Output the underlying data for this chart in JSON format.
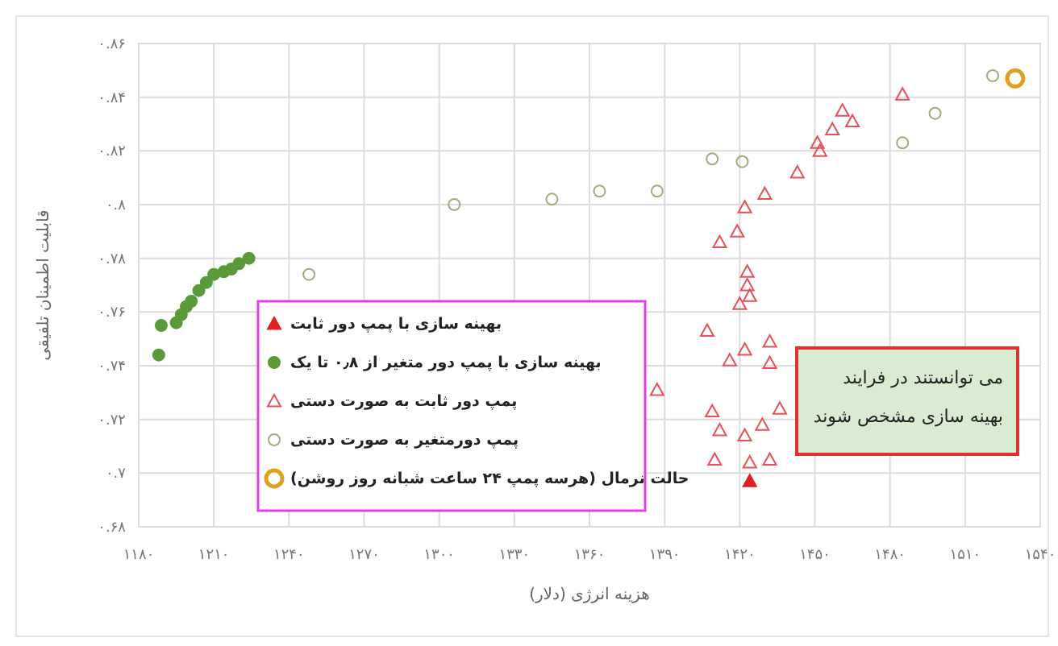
{
  "chart_data": {
    "type": "scatter",
    "xlabel": "هزینه انرژی (دلار)",
    "ylabel": "قابلیت اطمینان تلفیقی",
    "xlim": [
      1180,
      1540
    ],
    "ylim": [
      0.68,
      0.86
    ],
    "xticks": [
      {
        "value": 1180,
        "label": "۱۱۸۰"
      },
      {
        "value": 1210,
        "label": "۱۲۱۰"
      },
      {
        "value": 1240,
        "label": "۱۲۴۰"
      },
      {
        "value": 1270,
        "label": "۱۲۷۰"
      },
      {
        "value": 1300,
        "label": "۱۳۰۰"
      },
      {
        "value": 1330,
        "label": "۱۳۳۰"
      },
      {
        "value": 1360,
        "label": "۱۳۶۰"
      },
      {
        "value": 1390,
        "label": "۱۳۹۰"
      },
      {
        "value": 1420,
        "label": "۱۴۲۰"
      },
      {
        "value": 1450,
        "label": "۱۴۵۰"
      },
      {
        "value": 1480,
        "label": "۱۴۸۰"
      },
      {
        "value": 1510,
        "label": "۱۵۱۰"
      },
      {
        "value": 1540,
        "label": "۱۵۴۰"
      }
    ],
    "yticks": [
      {
        "value": 0.68,
        "label": "۰.۶۸"
      },
      {
        "value": 0.7,
        "label": "۰.۷"
      },
      {
        "value": 0.72,
        "label": "۰.۷۲"
      },
      {
        "value": 0.74,
        "label": "۰.۷۴"
      },
      {
        "value": 0.76,
        "label": "۰.۷۶"
      },
      {
        "value": 0.78,
        "label": "۰.۷۸"
      },
      {
        "value": 0.8,
        "label": "۰.۸"
      },
      {
        "value": 0.82,
        "label": "۰.۸۲"
      },
      {
        "value": 0.84,
        "label": "۰.۸۴"
      },
      {
        "value": 0.86,
        "label": "۰.۸۶"
      }
    ],
    "grid": true,
    "legend": "bottom left",
    "series": [
      {
        "name": "بهینه سازی با پمپ دور ثابت",
        "color": "#e02020",
        "marker": "triangle",
        "x": [
          1424
        ],
        "values": [
          0.697
        ]
      },
      {
        "name": "بهینه سازی با پمپ دور متغیر از ۰٫۸ تا یک",
        "color": "#5a9a3a",
        "marker": "circle",
        "x": [
          1188,
          1189,
          1195,
          1197,
          1199,
          1201,
          1204,
          1207,
          1210,
          1214,
          1217,
          1220,
          1224
        ],
        "values": [
          0.744,
          0.755,
          0.756,
          0.759,
          0.762,
          0.764,
          0.768,
          0.771,
          0.774,
          0.775,
          0.776,
          0.778,
          0.78
        ]
      },
      {
        "name": "پمپ دور ثابت به صورت دستی",
        "color": "#e8505a",
        "marker": "triangle",
        "x": [
          1461,
          1485,
          1457,
          1465,
          1451,
          1452,
          1443,
          1430,
          1422,
          1419,
          1412,
          1423,
          1423,
          1424,
          1420,
          1407,
          1422,
          1416,
          1432,
          1432,
          1387,
          1409,
          1436,
          1429,
          1412,
          1422,
          1410,
          1424,
          1432
        ],
        "values": [
          0.835,
          0.841,
          0.828,
          0.831,
          0.823,
          0.82,
          0.812,
          0.804,
          0.799,
          0.79,
          0.786,
          0.775,
          0.77,
          0.766,
          0.763,
          0.753,
          0.746,
          0.742,
          0.749,
          0.741,
          0.731,
          0.723,
          0.724,
          0.718,
          0.716,
          0.714,
          0.705,
          0.704,
          0.705
        ]
      },
      {
        "name": "پمپ دورمتغیر به صورت دستی",
        "color": "#a8a880",
        "marker": "circle",
        "x": [
          1248,
          1306,
          1345,
          1364,
          1387,
          1409,
          1421,
          1485,
          1498,
          1521
        ],
        "values": [
          0.774,
          0.8,
          0.802,
          0.805,
          0.805,
          0.817,
          0.816,
          0.823,
          0.834,
          0.848
        ]
      },
      {
        "name": "حالت نرمال (هرسه پمپ ۲۴ ساعت شبانه روز روشن)",
        "color": "#e0a020",
        "marker": "circle",
        "x": [
          1530
        ],
        "values": [
          0.847
        ]
      }
    ],
    "annotations": [
      "می توانستند در فرایند بهینه سازی مشخص شوند"
    ]
  }
}
